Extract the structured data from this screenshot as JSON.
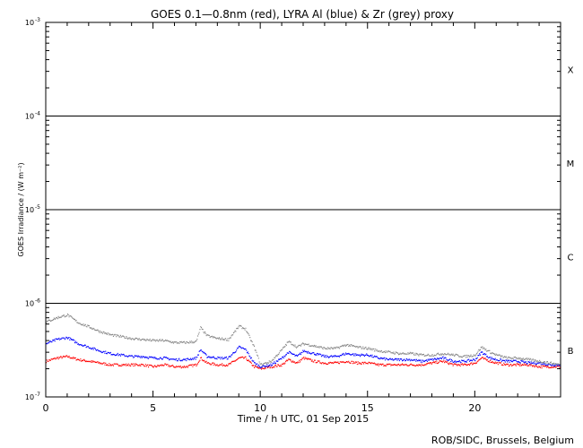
{
  "chart_data": {
    "type": "scatter",
    "title": "GOES 0.1—0.8nm (red), LYRA Al (blue) & Zr (grey) proxy",
    "xlabel": "Time / h UTC, 01 Sep 2015",
    "ylabel": "GOES Irradiance / (W m⁻²)",
    "credit": "ROB/SIDC, Brussels, Belgium",
    "xlim": [
      0,
      24
    ],
    "ylim_log10": [
      -7,
      -3
    ],
    "y_scale": "log",
    "x_ticks": [
      {
        "value": 0,
        "label": "0"
      },
      {
        "value": 5,
        "label": "5"
      },
      {
        "value": 10,
        "label": "10"
      },
      {
        "value": 15,
        "label": "15"
      },
      {
        "value": 20,
        "label": "20"
      }
    ],
    "y_ticks": [
      {
        "exp": -7,
        "base": "10",
        "sup": "-7"
      },
      {
        "exp": -6,
        "base": "10",
        "sup": "-6"
      },
      {
        "exp": -5,
        "base": "10",
        "sup": "-5"
      },
      {
        "exp": -4,
        "base": "10",
        "sup": "-4"
      },
      {
        "exp": -3,
        "base": "10",
        "sup": "-3"
      }
    ],
    "flare_classes": [
      {
        "label": "X",
        "log_center": -3.5
      },
      {
        "label": "M",
        "log_center": -4.5
      },
      {
        "label": "C",
        "log_center": -5.5
      },
      {
        "label": "B",
        "log_center": -6.5
      }
    ],
    "class_lines_log10": [
      -4,
      -5,
      -6
    ],
    "series": [
      {
        "name": "red",
        "color": "#ff0000",
        "x": [
          0,
          0.5,
          1,
          1.5,
          2,
          2.5,
          3,
          3.5,
          4,
          4.5,
          5,
          5.5,
          6,
          6.5,
          7,
          7.2,
          7.5,
          8,
          8.5,
          9,
          9.3,
          9.7,
          10,
          10.5,
          11,
          11.3,
          11.7,
          12,
          12.5,
          13,
          13.5,
          14,
          14.5,
          15,
          15.5,
          16,
          16.5,
          17,
          17.5,
          18,
          18.5,
          19,
          19.5,
          20,
          20.3,
          20.7,
          21,
          21.5,
          22,
          22.5,
          23,
          23.5,
          24
        ],
        "y": [
          2.4e-07,
          2.6e-07,
          2.7e-07,
          2.5e-07,
          2.4e-07,
          2.3e-07,
          2.2e-07,
          2.2e-07,
          2.2e-07,
          2.2e-07,
          2.1e-07,
          2.2e-07,
          2.1e-07,
          2.1e-07,
          2.2e-07,
          2.6e-07,
          2.3e-07,
          2.2e-07,
          2.2e-07,
          2.6e-07,
          2.6e-07,
          2.1e-07,
          2e-07,
          2.1e-07,
          2.2e-07,
          2.5e-07,
          2.3e-07,
          2.6e-07,
          2.4e-07,
          2.3e-07,
          2.3e-07,
          2.4e-07,
          2.3e-07,
          2.3e-07,
          2.2e-07,
          2.2e-07,
          2.2e-07,
          2.2e-07,
          2.2e-07,
          2.3e-07,
          2.4e-07,
          2.2e-07,
          2.2e-07,
          2.3e-07,
          2.6e-07,
          2.4e-07,
          2.3e-07,
          2.2e-07,
          2.2e-07,
          2.2e-07,
          2.1e-07,
          2.1e-07,
          2.1e-07
        ]
      },
      {
        "name": "blue",
        "color": "#0000ff",
        "x": [
          0,
          0.5,
          1,
          1.5,
          2,
          2.5,
          3,
          3.5,
          4,
          4.5,
          5,
          5.5,
          6,
          6.5,
          7,
          7.2,
          7.5,
          8,
          8.5,
          9,
          9.3,
          9.7,
          10,
          10.5,
          11,
          11.3,
          11.7,
          12,
          12.5,
          13,
          13.5,
          14,
          14.5,
          15,
          15.5,
          16,
          16.5,
          17,
          17.5,
          18,
          18.5,
          19,
          19.5,
          20,
          20.3,
          20.7,
          21,
          21.5,
          22,
          22.5,
          23,
          23.5,
          24
        ],
        "y": [
          3.7e-07,
          4.1e-07,
          4.3e-07,
          3.7e-07,
          3.4e-07,
          3.1e-07,
          2.9e-07,
          2.8e-07,
          2.7e-07,
          2.7e-07,
          2.6e-07,
          2.6e-07,
          2.5e-07,
          2.5e-07,
          2.6e-07,
          3.2e-07,
          2.7e-07,
          2.6e-07,
          2.6e-07,
          3.4e-07,
          3.2e-07,
          2.3e-07,
          2.1e-07,
          2.2e-07,
          2.6e-07,
          3e-07,
          2.7e-07,
          3.1e-07,
          2.9e-07,
          2.7e-07,
          2.7e-07,
          2.9e-07,
          2.8e-07,
          2.8e-07,
          2.6e-07,
          2.5e-07,
          2.5e-07,
          2.5e-07,
          2.4e-07,
          2.5e-07,
          2.6e-07,
          2.4e-07,
          2.4e-07,
          2.5e-07,
          3e-07,
          2.6e-07,
          2.5e-07,
          2.4e-07,
          2.4e-07,
          2.3e-07,
          2.3e-07,
          2.2e-07,
          2.2e-07
        ]
      },
      {
        "name": "grey",
        "color": "#888888",
        "x": [
          0,
          0.5,
          1,
          1.5,
          2,
          2.5,
          3,
          3.5,
          4,
          4.5,
          5,
          5.5,
          6,
          6.5,
          7,
          7.2,
          7.5,
          8,
          8.5,
          9,
          9.3,
          9.7,
          10,
          10.5,
          11,
          11.3,
          11.7,
          12,
          12.5,
          13,
          13.5,
          14,
          14.5,
          15,
          15.5,
          16,
          16.5,
          17,
          17.5,
          18,
          18.5,
          19,
          19.5,
          20,
          20.3,
          20.7,
          21,
          21.5,
          22,
          22.5,
          23,
          23.5,
          24
        ],
        "y": [
          6.3e-07,
          7e-07,
          7.5e-07,
          6.2e-07,
          5.6e-07,
          5e-07,
          4.6e-07,
          4.4e-07,
          4.2e-07,
          4.1e-07,
          4e-07,
          4e-07,
          3.8e-07,
          3.8e-07,
          3.9e-07,
          5.5e-07,
          4.5e-07,
          4.2e-07,
          4.1e-07,
          5.7e-07,
          5.3e-07,
          3.4e-07,
          2.2e-07,
          2.4e-07,
          3.2e-07,
          3.9e-07,
          3.4e-07,
          3.7e-07,
          3.5e-07,
          3.3e-07,
          3.3e-07,
          3.6e-07,
          3.4e-07,
          3.3e-07,
          3.1e-07,
          3e-07,
          2.9e-07,
          2.9e-07,
          2.8e-07,
          2.8e-07,
          2.9e-07,
          2.8e-07,
          2.7e-07,
          2.8e-07,
          3.4e-07,
          3e-07,
          2.8e-07,
          2.6e-07,
          2.6e-07,
          2.5e-07,
          2.4e-07,
          2.3e-07,
          2.2e-07
        ]
      }
    ]
  }
}
